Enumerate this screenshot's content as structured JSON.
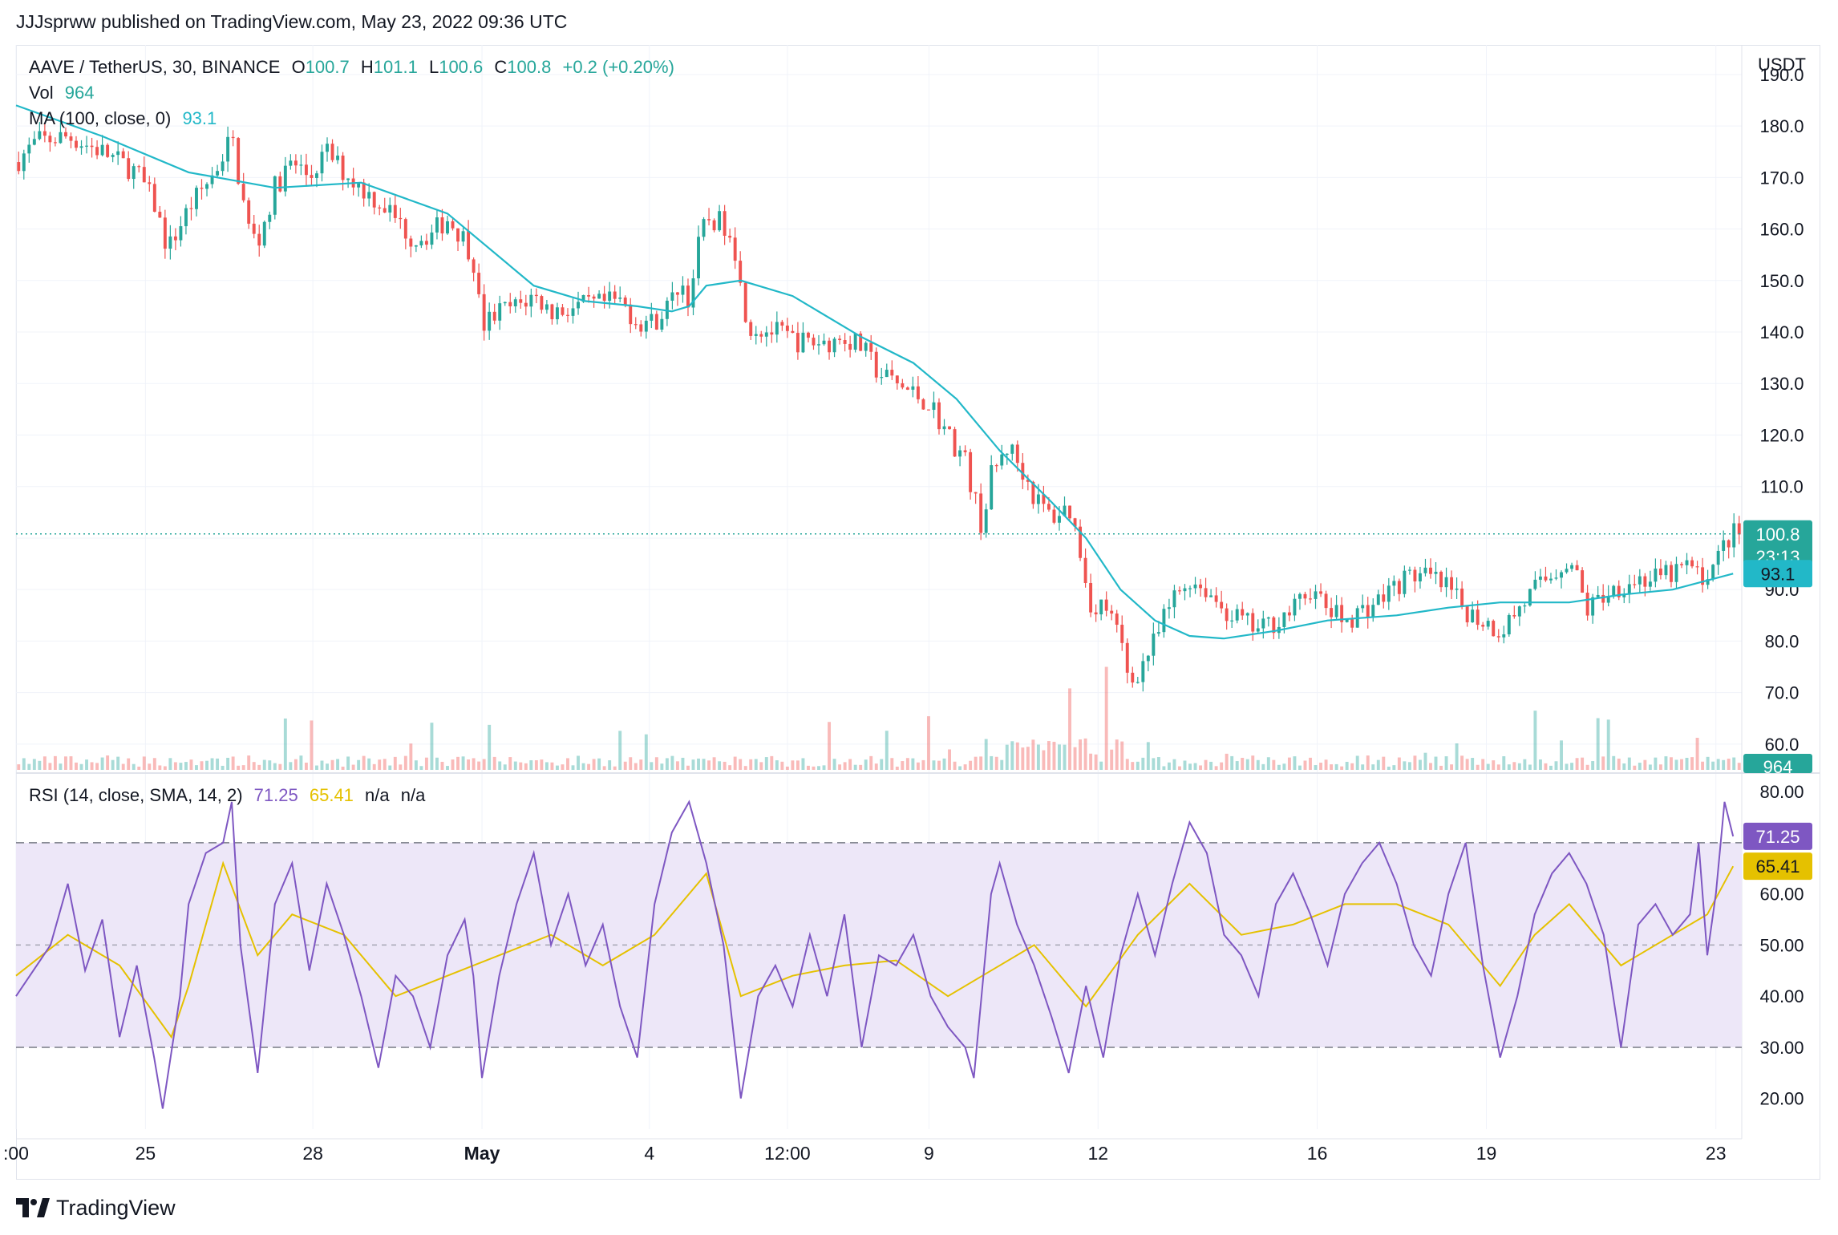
{
  "publisher_line": "JJJsprww published on TradingView.com, May 23, 2022 09:36 UTC",
  "footer_brand": "TradingView",
  "colors": {
    "up": "#26a69a",
    "down": "#ef5350",
    "ma": "#22b8c8",
    "rsi": "#7e57c2",
    "rsi_ma": "#e5c100",
    "band": "#ede7f8"
  },
  "legend": {
    "symbol": "AAVE / TetherUS, 30, BINANCE",
    "o_label": "O",
    "o": "100.7",
    "h_label": "H",
    "h": "101.1",
    "l_label": "L",
    "l": "100.6",
    "c_label": "C",
    "c": "100.8",
    "change": "+0.2 (+0.20%)",
    "vol_label": "Vol",
    "vol": "964",
    "ma_label": "MA (100, close, 0)",
    "ma": "93.1",
    "rsi_label": "RSI (14, close, SMA, 14, 2)",
    "rsi": "71.25",
    "rsi_ma": "65.41",
    "rsi_na1": "n/a",
    "rsi_na2": "n/a"
  },
  "chart_data": [
    {
      "type": "candlestick",
      "title": "AAVE / TetherUS, 30, BINANCE",
      "y_unit": "USDT",
      "ylim": [
        55,
        192
      ],
      "y_ticks": [
        "190.0",
        "180.0",
        "170.0",
        "160.0",
        "150.0",
        "140.0",
        "130.0",
        "120.0",
        "110.0",
        "100.0",
        "90.0",
        "80.0",
        "70.0",
        "60.0"
      ],
      "x_ticks": [
        ":00",
        "25",
        "28",
        "May",
        "4",
        "12:00",
        "9",
        "12",
        "16",
        "19",
        "23"
      ],
      "x_tick_positions": [
        0,
        0.075,
        0.172,
        0.27,
        0.367,
        0.447,
        0.529,
        0.627,
        0.754,
        0.852,
        0.985
      ],
      "last_price": "100.8",
      "countdown": "23:13",
      "ma_value": "93.1",
      "volume_value": "964",
      "grid": true,
      "price_path": [
        [
          0,
          173
        ],
        [
          0.012,
          177
        ],
        [
          0.03,
          178
        ],
        [
          0.05,
          175
        ],
        [
          0.07,
          171
        ],
        [
          0.08,
          165
        ],
        [
          0.088,
          156
        ],
        [
          0.1,
          164
        ],
        [
          0.115,
          171
        ],
        [
          0.125,
          178
        ],
        [
          0.13,
          168
        ],
        [
          0.135,
          160
        ],
        [
          0.14,
          157
        ],
        [
          0.15,
          168
        ],
        [
          0.16,
          173
        ],
        [
          0.17,
          170
        ],
        [
          0.18,
          175
        ],
        [
          0.19,
          171
        ],
        [
          0.2,
          168
        ],
        [
          0.215,
          164
        ],
        [
          0.23,
          158
        ],
        [
          0.24,
          159
        ],
        [
          0.25,
          162
        ],
        [
          0.26,
          158
        ],
        [
          0.265,
          154
        ],
        [
          0.27,
          141
        ],
        [
          0.28,
          144
        ],
        [
          0.29,
          145
        ],
        [
          0.3,
          147
        ],
        [
          0.31,
          144
        ],
        [
          0.33,
          145
        ],
        [
          0.35,
          146
        ],
        [
          0.36,
          142
        ],
        [
          0.37,
          142
        ],
        [
          0.38,
          146
        ],
        [
          0.385,
          150
        ],
        [
          0.39,
          146
        ],
        [
          0.395,
          156
        ],
        [
          0.4,
          162
        ],
        [
          0.41,
          161
        ],
        [
          0.415,
          160
        ],
        [
          0.42,
          148
        ],
        [
          0.425,
          141
        ],
        [
          0.44,
          140
        ],
        [
          0.455,
          138
        ],
        [
          0.47,
          138
        ],
        [
          0.48,
          139
        ],
        [
          0.49,
          137
        ],
        [
          0.5,
          132
        ],
        [
          0.51,
          130
        ],
        [
          0.52,
          128
        ],
        [
          0.53,
          126
        ],
        [
          0.54,
          120
        ],
        [
          0.55,
          115
        ],
        [
          0.555,
          108
        ],
        [
          0.56,
          102
        ],
        [
          0.565,
          112
        ],
        [
          0.575,
          118
        ],
        [
          0.585,
          112
        ],
        [
          0.59,
          108
        ],
        [
          0.6,
          104
        ],
        [
          0.61,
          106
        ],
        [
          0.615,
          100
        ],
        [
          0.62,
          92
        ],
        [
          0.625,
          84
        ],
        [
          0.63,
          88
        ],
        [
          0.64,
          80
        ],
        [
          0.645,
          72
        ],
        [
          0.65,
          74
        ],
        [
          0.66,
          80
        ],
        [
          0.67,
          88
        ],
        [
          0.68,
          92
        ],
        [
          0.69,
          90
        ],
        [
          0.7,
          86
        ],
        [
          0.71,
          84
        ],
        [
          0.72,
          82
        ],
        [
          0.73,
          84
        ],
        [
          0.74,
          86
        ],
        [
          0.75,
          90
        ],
        [
          0.76,
          86
        ],
        [
          0.77,
          84
        ],
        [
          0.78,
          86
        ],
        [
          0.79,
          88
        ],
        [
          0.8,
          91
        ],
        [
          0.81,
          93
        ],
        [
          0.82,
          92
        ],
        [
          0.83,
          90
        ],
        [
          0.84,
          86
        ],
        [
          0.85,
          84
        ],
        [
          0.86,
          82
        ],
        [
          0.87,
          86
        ],
        [
          0.88,
          90
        ],
        [
          0.89,
          93
        ],
        [
          0.9,
          96
        ],
        [
          0.905,
          92
        ],
        [
          0.91,
          86
        ],
        [
          0.92,
          89
        ],
        [
          0.93,
          91
        ],
        [
          0.94,
          92
        ],
        [
          0.95,
          92
        ],
        [
          0.96,
          93
        ],
        [
          0.97,
          95
        ],
        [
          0.975,
          92
        ],
        [
          0.985,
          95
        ],
        [
          0.99,
          99
        ],
        [
          0.995,
          100.8
        ]
      ],
      "ma_path": [
        [
          0,
          184
        ],
        [
          0.05,
          178
        ],
        [
          0.1,
          171
        ],
        [
          0.15,
          168
        ],
        [
          0.2,
          169
        ],
        [
          0.25,
          163
        ],
        [
          0.3,
          149
        ],
        [
          0.33,
          146
        ],
        [
          0.36,
          145
        ],
        [
          0.38,
          144
        ],
        [
          0.39,
          145
        ],
        [
          0.4,
          149
        ],
        [
          0.42,
          150
        ],
        [
          0.45,
          147
        ],
        [
          0.49,
          139
        ],
        [
          0.52,
          134
        ],
        [
          0.545,
          127
        ],
        [
          0.57,
          117
        ],
        [
          0.6,
          107
        ],
        [
          0.62,
          100
        ],
        [
          0.64,
          90
        ],
        [
          0.66,
          84
        ],
        [
          0.68,
          81
        ],
        [
          0.7,
          80.5
        ],
        [
          0.73,
          82
        ],
        [
          0.76,
          84
        ],
        [
          0.8,
          85
        ],
        [
          0.83,
          86.5
        ],
        [
          0.86,
          87.5
        ],
        [
          0.9,
          87.5
        ],
        [
          0.93,
          89
        ],
        [
          0.96,
          90
        ],
        [
          0.995,
          93.1
        ]
      ]
    },
    {
      "type": "line",
      "title": "RSI (14, close, SMA, 14, 2)",
      "ylim": [
        14,
        83
      ],
      "y_ticks": [
        "80.00",
        "70.00",
        "60.00",
        "50.00",
        "40.00",
        "30.00",
        "20.00"
      ],
      "band": [
        30,
        70
      ],
      "midline": 50,
      "last_rsi": "71.25",
      "last_rsi_ma": "65.41",
      "rsi_path": [
        [
          0,
          40
        ],
        [
          0.02,
          50
        ],
        [
          0.03,
          62
        ],
        [
          0.04,
          45
        ],
        [
          0.05,
          55
        ],
        [
          0.06,
          32
        ],
        [
          0.07,
          46
        ],
        [
          0.08,
          28
        ],
        [
          0.085,
          18
        ],
        [
          0.095,
          40
        ],
        [
          0.1,
          58
        ],
        [
          0.11,
          68
        ],
        [
          0.12,
          70
        ],
        [
          0.125,
          78
        ],
        [
          0.13,
          50
        ],
        [
          0.14,
          25
        ],
        [
          0.15,
          58
        ],
        [
          0.16,
          66
        ],
        [
          0.17,
          45
        ],
        [
          0.18,
          62
        ],
        [
          0.19,
          52
        ],
        [
          0.2,
          40
        ],
        [
          0.21,
          26
        ],
        [
          0.22,
          44
        ],
        [
          0.23,
          40
        ],
        [
          0.24,
          30
        ],
        [
          0.25,
          48
        ],
        [
          0.26,
          55
        ],
        [
          0.265,
          44
        ],
        [
          0.27,
          24
        ],
        [
          0.28,
          44
        ],
        [
          0.29,
          58
        ],
        [
          0.3,
          68
        ],
        [
          0.31,
          50
        ],
        [
          0.32,
          60
        ],
        [
          0.33,
          46
        ],
        [
          0.34,
          54
        ],
        [
          0.35,
          38
        ],
        [
          0.36,
          28
        ],
        [
          0.37,
          58
        ],
        [
          0.38,
          72
        ],
        [
          0.39,
          78
        ],
        [
          0.4,
          66
        ],
        [
          0.41,
          50
        ],
        [
          0.42,
          20
        ],
        [
          0.43,
          40
        ],
        [
          0.44,
          46
        ],
        [
          0.45,
          38
        ],
        [
          0.46,
          52
        ],
        [
          0.47,
          40
        ],
        [
          0.48,
          56
        ],
        [
          0.49,
          30
        ],
        [
          0.5,
          48
        ],
        [
          0.51,
          46
        ],
        [
          0.52,
          52
        ],
        [
          0.53,
          40
        ],
        [
          0.54,
          34
        ],
        [
          0.55,
          30
        ],
        [
          0.555,
          24
        ],
        [
          0.565,
          60
        ],
        [
          0.57,
          66
        ],
        [
          0.58,
          54
        ],
        [
          0.59,
          46
        ],
        [
          0.6,
          36
        ],
        [
          0.61,
          25
        ],
        [
          0.62,
          42
        ],
        [
          0.63,
          28
        ],
        [
          0.64,
          48
        ],
        [
          0.65,
          60
        ],
        [
          0.66,
          48
        ],
        [
          0.67,
          62
        ],
        [
          0.68,
          74
        ],
        [
          0.69,
          68
        ],
        [
          0.7,
          52
        ],
        [
          0.71,
          48
        ],
        [
          0.72,
          40
        ],
        [
          0.73,
          58
        ],
        [
          0.74,
          64
        ],
        [
          0.75,
          56
        ],
        [
          0.76,
          46
        ],
        [
          0.77,
          60
        ],
        [
          0.78,
          66
        ],
        [
          0.79,
          70
        ],
        [
          0.8,
          62
        ],
        [
          0.81,
          50
        ],
        [
          0.82,
          44
        ],
        [
          0.83,
          60
        ],
        [
          0.84,
          70
        ],
        [
          0.85,
          46
        ],
        [
          0.86,
          28
        ],
        [
          0.87,
          40
        ],
        [
          0.88,
          56
        ],
        [
          0.89,
          64
        ],
        [
          0.9,
          68
        ],
        [
          0.91,
          62
        ],
        [
          0.92,
          52
        ],
        [
          0.93,
          30
        ],
        [
          0.94,
          54
        ],
        [
          0.95,
          58
        ],
        [
          0.96,
          52
        ],
        [
          0.97,
          56
        ],
        [
          0.975,
          70
        ],
        [
          0.98,
          48
        ],
        [
          0.985,
          60
        ],
        [
          0.99,
          78
        ],
        [
          0.995,
          71.25
        ]
      ],
      "rsi_ma_path": [
        [
          0,
          44
        ],
        [
          0.03,
          52
        ],
        [
          0.06,
          46
        ],
        [
          0.09,
          32
        ],
        [
          0.1,
          42
        ],
        [
          0.12,
          66
        ],
        [
          0.14,
          48
        ],
        [
          0.16,
          56
        ],
        [
          0.19,
          52
        ],
        [
          0.22,
          40
        ],
        [
          0.25,
          44
        ],
        [
          0.28,
          48
        ],
        [
          0.31,
          52
        ],
        [
          0.34,
          46
        ],
        [
          0.37,
          52
        ],
        [
          0.4,
          64
        ],
        [
          0.42,
          40
        ],
        [
          0.45,
          44
        ],
        [
          0.48,
          46
        ],
        [
          0.51,
          47
        ],
        [
          0.54,
          40
        ],
        [
          0.56,
          44
        ],
        [
          0.59,
          50
        ],
        [
          0.62,
          38
        ],
        [
          0.65,
          52
        ],
        [
          0.68,
          62
        ],
        [
          0.71,
          52
        ],
        [
          0.74,
          54
        ],
        [
          0.77,
          58
        ],
        [
          0.8,
          58
        ],
        [
          0.83,
          54
        ],
        [
          0.86,
          42
        ],
        [
          0.88,
          52
        ],
        [
          0.9,
          58
        ],
        [
          0.93,
          46
        ],
        [
          0.96,
          52
        ],
        [
          0.98,
          56
        ],
        [
          0.995,
          65.41
        ]
      ]
    }
  ]
}
